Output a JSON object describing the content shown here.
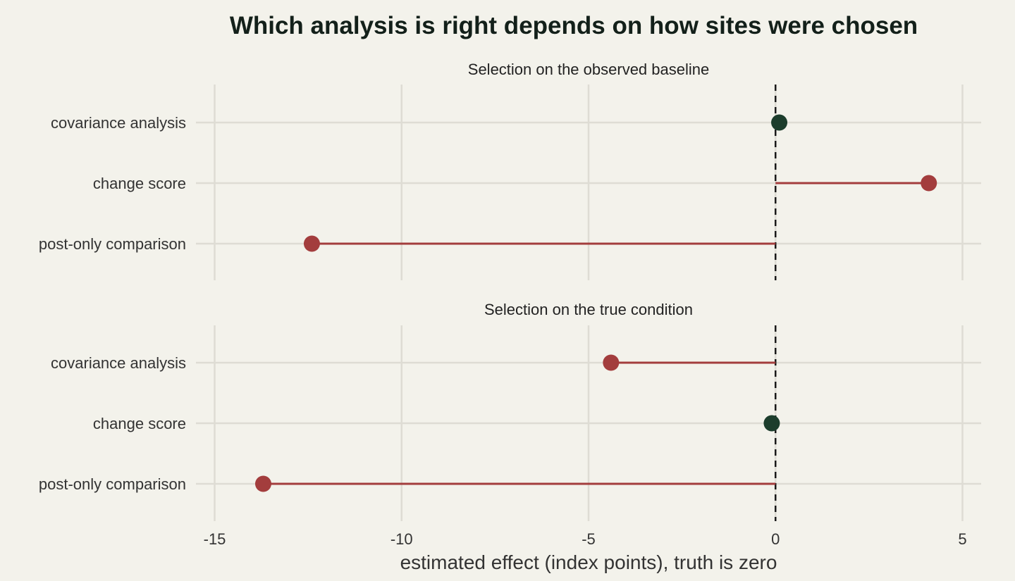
{
  "chart_data": {
    "type": "dot",
    "title": "Which analysis is right depends on how sites were chosen",
    "xlabel": "estimated effect (index points), truth is zero",
    "xlim": [
      -15.5,
      5.5
    ],
    "xticks": [
      -15,
      -10,
      -5,
      0,
      5
    ],
    "reference_line": 0,
    "categories": [
      "covariance analysis",
      "change score",
      "post-only comparison"
    ],
    "colors": {
      "correct": "#1c3d2c",
      "biased": "#a33d3d"
    },
    "panels": [
      {
        "title": "Selection on the observed baseline",
        "points": [
          {
            "category": "covariance analysis",
            "value": 0.1,
            "status": "correct"
          },
          {
            "category": "change score",
            "value": 4.1,
            "status": "biased"
          },
          {
            "category": "post-only comparison",
            "value": -12.4,
            "status": "biased"
          }
        ]
      },
      {
        "title": "Selection on the true condition",
        "points": [
          {
            "category": "covariance analysis",
            "value": -4.4,
            "status": "biased"
          },
          {
            "category": "change score",
            "value": -0.1,
            "status": "correct"
          },
          {
            "category": "post-only comparison",
            "value": -13.7,
            "status": "biased"
          }
        ]
      }
    ]
  }
}
